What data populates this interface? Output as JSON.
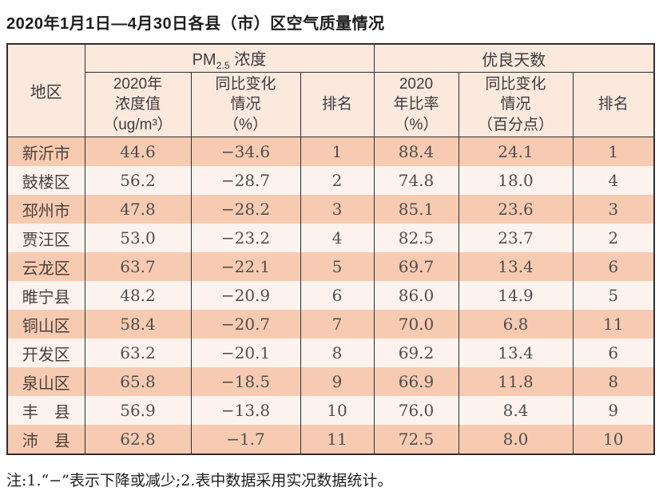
{
  "page": {
    "title": "2020年1月1日—4月30日各县（市）区空气质量情况",
    "note": "注:1.“−”表示下降或减少;2.表中数据采用实况数据统计。"
  },
  "colors": {
    "header_bg": "#fce9de",
    "row_odd_bg": "#f7cbb1",
    "row_even_bg": "#fdf3ee",
    "border": "#2e2e2e",
    "title_text": "#1c1c1c",
    "cell_text": "#4f4f4f"
  },
  "table": {
    "col_region": "地区",
    "group_pm": {
      "prefix": "PM",
      "sub": "2.5",
      "suffix": " 浓度"
    },
    "group_good": "优良天数",
    "sub_headers": {
      "pm_value": "2020年\n浓度值\n（ug/m³）",
      "pm_change": "同比变化\n情况\n（%）",
      "pm_rank": "排名",
      "good_ratio": "2020\n年比率\n（%）",
      "good_change": "同比变化\n情况\n（百分点）",
      "good_rank": "排名"
    }
  },
  "chart_data": {
    "type": "table",
    "title": "2020年1月1日—4月30日各县（市）区空气质量情况",
    "column_groups": [
      "PM2.5 浓度",
      "优良天数"
    ],
    "columns": [
      "地区",
      "PM2.5 2020年浓度值（ug/m³）",
      "PM2.5 同比变化情况（%）",
      "PM2.5 排名",
      "优良天数 2020年比率（%）",
      "优良天数 同比变化情况（百分点）",
      "优良天数 排名"
    ],
    "rows": [
      [
        "新沂市",
        "44.6",
        "−34.6",
        "1",
        "88.4",
        "24.1",
        "1"
      ],
      [
        "鼓楼区",
        "56.2",
        "−28.7",
        "2",
        "74.8",
        "18.0",
        "4"
      ],
      [
        "邳州市",
        "47.8",
        "−28.2",
        "3",
        "85.1",
        "23.6",
        "3"
      ],
      [
        "贾汪区",
        "53.0",
        "−23.2",
        "4",
        "82.5",
        "23.7",
        "2"
      ],
      [
        "云龙区",
        "63.7",
        "−22.1",
        "5",
        "69.7",
        "13.4",
        "6"
      ],
      [
        "睢宁县",
        "48.2",
        "−20.9",
        "6",
        "86.0",
        "14.9",
        "5"
      ],
      [
        "铜山区",
        "58.4",
        "−20.7",
        "7",
        "70.0",
        "6.8",
        "11"
      ],
      [
        "开发区",
        "63.2",
        "−20.1",
        "8",
        "69.2",
        "13.4",
        "6"
      ],
      [
        "泉山区",
        "65.8",
        "−18.5",
        "9",
        "66.9",
        "11.8",
        "8"
      ],
      [
        "丰　县",
        "56.9",
        "−13.8",
        "10",
        "76.0",
        "8.4",
        "9"
      ],
      [
        "沛　县",
        "62.8",
        "−1.7",
        "11",
        "72.5",
        "8.0",
        "10"
      ]
    ],
    "note": "注:1.“−”表示下降或减少;2.表中数据采用实况数据统计。"
  }
}
